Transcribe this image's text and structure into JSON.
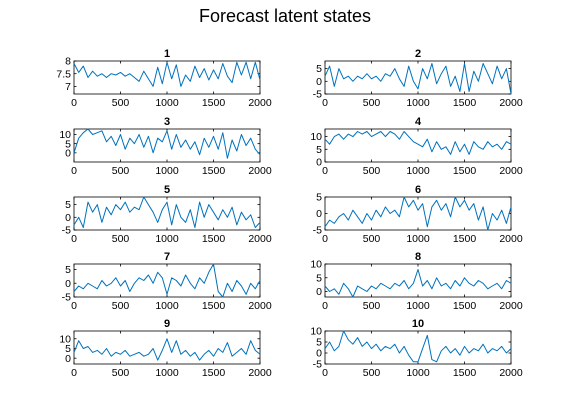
{
  "figure_title": "Forecast latent states",
  "colors": {
    "line": "#0072bd",
    "axes": "#000000",
    "background": "#ffffff"
  },
  "chart_data": [
    {
      "type": "line",
      "title": "1",
      "xlim": [
        0,
        2000
      ],
      "ylim": [
        6.7,
        8.0
      ],
      "xticks": [
        "0",
        "500",
        "1000",
        "1500",
        "2000"
      ],
      "yticks": [
        "7",
        "7.5",
        "8"
      ],
      "ytick_values": [
        7,
        7.5,
        8
      ],
      "x": [
        0,
        50,
        100,
        150,
        200,
        250,
        300,
        350,
        400,
        450,
        500,
        550,
        600,
        650,
        700,
        750,
        800,
        850,
        900,
        950,
        1000,
        1050,
        1100,
        1150,
        1200,
        1250,
        1300,
        1350,
        1400,
        1450,
        1500,
        1550,
        1600,
        1650,
        1700,
        1750,
        1800,
        1850,
        1900,
        1950,
        2000
      ],
      "y": [
        7.9,
        7.55,
        7.8,
        7.35,
        7.6,
        7.4,
        7.5,
        7.35,
        7.5,
        7.45,
        7.55,
        7.4,
        7.5,
        7.35,
        7.2,
        7.6,
        7.3,
        7.0,
        7.75,
        7.1,
        7.95,
        7.3,
        7.85,
        7.0,
        7.45,
        7.2,
        7.8,
        7.35,
        7.7,
        7.25,
        7.65,
        7.3,
        7.9,
        7.4,
        7.15,
        7.95,
        7.45,
        7.95,
        7.3,
        7.95,
        7.25
      ]
    },
    {
      "type": "line",
      "title": "2",
      "xlim": [
        0,
        2000
      ],
      "ylim": [
        -5,
        8
      ],
      "xticks": [
        "0",
        "500",
        "1000",
        "1500",
        "2000"
      ],
      "yticks": [
        "-5",
        "0",
        "5"
      ],
      "ytick_values": [
        -5,
        0,
        5
      ],
      "x": [
        0,
        50,
        100,
        150,
        200,
        250,
        300,
        350,
        400,
        450,
        500,
        550,
        600,
        650,
        700,
        750,
        800,
        850,
        900,
        950,
        1000,
        1050,
        1100,
        1150,
        1200,
        1250,
        1300,
        1350,
        1400,
        1450,
        1500,
        1550,
        1600,
        1650,
        1700,
        1750,
        1800,
        1850,
        1900,
        1950,
        2000
      ],
      "y": [
        2,
        6,
        -2,
        5,
        1,
        2,
        0,
        2,
        1,
        3,
        1,
        2,
        0,
        3,
        2,
        5,
        1,
        -2,
        6,
        0,
        -3,
        5,
        1,
        7,
        -1,
        3,
        6,
        -2,
        2,
        -4,
        7,
        -4,
        4,
        0,
        7,
        3,
        -1,
        6,
        1,
        5,
        -5
      ]
    },
    {
      "type": "line",
      "title": "3",
      "xlim": [
        0,
        2000
      ],
      "ylim": [
        -5,
        13
      ],
      "xticks": [
        "0",
        "500",
        "1000",
        "1500",
        "2000"
      ],
      "yticks": [
        "0",
        "5",
        "10"
      ],
      "ytick_values": [
        0,
        5,
        10
      ],
      "x": [
        0,
        50,
        100,
        150,
        200,
        250,
        300,
        350,
        400,
        450,
        500,
        550,
        600,
        650,
        700,
        750,
        800,
        850,
        900,
        950,
        1000,
        1050,
        1100,
        1150,
        1200,
        1250,
        1300,
        1350,
        1400,
        1450,
        1500,
        1550,
        1600,
        1650,
        1700,
        1750,
        1800,
        1850,
        1900,
        1950,
        2000
      ],
      "y": [
        0,
        8,
        11,
        13,
        10,
        11,
        12,
        6,
        9,
        4,
        10,
        2,
        8,
        5,
        10,
        3,
        9,
        0,
        8,
        6,
        12,
        2,
        10,
        3,
        7,
        2,
        6,
        -1,
        8,
        3,
        9,
        2,
        11,
        -3,
        7,
        1,
        10,
        4,
        8,
        2,
        -1
      ]
    },
    {
      "type": "line",
      "title": "4",
      "xlim": [
        0,
        2000
      ],
      "ylim": [
        0,
        13
      ],
      "xticks": [
        "0",
        "500",
        "1000",
        "1500",
        "2000"
      ],
      "yticks": [
        "0",
        "5",
        "10"
      ],
      "ytick_values": [
        0,
        5,
        10
      ],
      "x": [
        0,
        50,
        100,
        150,
        200,
        250,
        300,
        350,
        400,
        450,
        500,
        550,
        600,
        650,
        700,
        750,
        800,
        850,
        900,
        950,
        1000,
        1050,
        1100,
        1150,
        1200,
        1250,
        1300,
        1350,
        1400,
        1450,
        1500,
        1550,
        1600,
        1650,
        1700,
        1750,
        1800,
        1850,
        1900,
        1950,
        2000
      ],
      "y": [
        9,
        7,
        10,
        11,
        9,
        11,
        10,
        12,
        11,
        12,
        10,
        11,
        12,
        10,
        12,
        11,
        9,
        12,
        10,
        8,
        7,
        6,
        9,
        4,
        8,
        5,
        6,
        3,
        8,
        4,
        7,
        3,
        8,
        6,
        5,
        8,
        6,
        7,
        5,
        8,
        7
      ]
    },
    {
      "type": "line",
      "title": "5",
      "xlim": [
        0,
        2000
      ],
      "ylim": [
        -5,
        8
      ],
      "xticks": [
        "0",
        "500",
        "1000",
        "1500",
        "2000"
      ],
      "yticks": [
        "-5",
        "0",
        "5"
      ],
      "ytick_values": [
        -5,
        0,
        5
      ],
      "x": [
        0,
        50,
        100,
        150,
        200,
        250,
        300,
        350,
        400,
        450,
        500,
        550,
        600,
        650,
        700,
        750,
        800,
        850,
        900,
        950,
        1000,
        1050,
        1100,
        1150,
        1200,
        1250,
        1300,
        1350,
        1400,
        1450,
        1500,
        1550,
        1600,
        1650,
        1700,
        1750,
        1800,
        1850,
        1900,
        1950,
        2000
      ],
      "y": [
        -3,
        0,
        -4,
        6,
        2,
        5,
        -2,
        4,
        1,
        5,
        3,
        6,
        2,
        4,
        3,
        8,
        5,
        2,
        -2,
        3,
        6,
        -3,
        5,
        0,
        -2,
        3,
        -4,
        6,
        0,
        5,
        2,
        -1,
        3,
        0,
        4,
        -3,
        2,
        -1,
        1,
        -4,
        -2
      ]
    },
    {
      "type": "line",
      "title": "6",
      "xlim": [
        0,
        2000
      ],
      "ylim": [
        -5,
        5
      ],
      "xticks": [
        "0",
        "500",
        "1000",
        "1500",
        "2000"
      ],
      "yticks": [
        "-5",
        "0",
        "5"
      ],
      "ytick_values": [
        -5,
        0,
        5
      ],
      "x": [
        0,
        50,
        100,
        150,
        200,
        250,
        300,
        350,
        400,
        450,
        500,
        550,
        600,
        650,
        700,
        750,
        800,
        850,
        900,
        950,
        1000,
        1050,
        1100,
        1150,
        1200,
        1250,
        1300,
        1350,
        1400,
        1450,
        1500,
        1550,
        1600,
        1650,
        1700,
        1750,
        1800,
        1850,
        1900,
        1950,
        2000
      ],
      "y": [
        -4,
        -2,
        -3,
        -1,
        0,
        -2,
        1,
        -1,
        -3,
        0,
        -2,
        1,
        -1,
        2,
        0,
        1,
        -1,
        5,
        2,
        4,
        1,
        3,
        -4,
        2,
        4,
        1,
        3,
        -1,
        5,
        2,
        4,
        1,
        3,
        -2,
        2,
        -5,
        0,
        -2,
        1,
        -3,
        2
      ]
    },
    {
      "type": "line",
      "title": "7",
      "xlim": [
        0,
        2000
      ],
      "ylim": [
        -5,
        7
      ],
      "xticks": [
        "0",
        "500",
        "1000",
        "1500",
        "2000"
      ],
      "yticks": [
        "-5",
        "0",
        "5"
      ],
      "ytick_values": [
        -5,
        0,
        5
      ],
      "x": [
        0,
        50,
        100,
        150,
        200,
        250,
        300,
        350,
        400,
        450,
        500,
        550,
        600,
        650,
        700,
        750,
        800,
        850,
        900,
        950,
        1000,
        1050,
        1100,
        1150,
        1200,
        1250,
        1300,
        1350,
        1400,
        1450,
        1500,
        1550,
        1600,
        1650,
        1700,
        1750,
        1800,
        1850,
        1900,
        1950,
        2000
      ],
      "y": [
        -3,
        -1,
        -2,
        0,
        -1,
        -2,
        1,
        -1,
        0,
        2,
        -1,
        1,
        -3,
        0,
        2,
        1,
        3,
        0,
        4,
        2,
        -4,
        2,
        1,
        -1,
        3,
        0,
        -2,
        2,
        0,
        4,
        7,
        -3,
        -5,
        0,
        -3,
        1,
        -1,
        -4,
        0,
        -2,
        1
      ]
    },
    {
      "type": "line",
      "title": "8",
      "xlim": [
        0,
        2000
      ],
      "ylim": [
        -2,
        10
      ],
      "xticks": [
        "0",
        "500",
        "1000",
        "1500",
        "2000"
      ],
      "yticks": [
        "0",
        "5",
        "10"
      ],
      "ytick_values": [
        0,
        5,
        10
      ],
      "x": [
        0,
        50,
        100,
        150,
        200,
        250,
        300,
        350,
        400,
        450,
        500,
        550,
        600,
        650,
        700,
        750,
        800,
        850,
        900,
        950,
        1000,
        1050,
        1100,
        1150,
        1200,
        1250,
        1300,
        1350,
        1400,
        1450,
        1500,
        1550,
        1600,
        1650,
        1700,
        1750,
        1800,
        1850,
        1900,
        1950,
        2000
      ],
      "y": [
        2,
        0,
        1,
        -1,
        3,
        1,
        -2,
        2,
        1,
        0,
        2,
        1,
        3,
        2,
        1,
        3,
        2,
        4,
        1,
        3,
        8,
        2,
        4,
        1,
        5,
        2,
        3,
        1,
        4,
        2,
        5,
        3,
        2,
        4,
        3,
        1,
        2,
        3,
        1,
        4,
        3
      ]
    },
    {
      "type": "line",
      "title": "9",
      "xlim": [
        0,
        2000
      ],
      "ylim": [
        -3,
        14
      ],
      "xticks": [
        "0",
        "500",
        "1000",
        "1500",
        "2000"
      ],
      "yticks": [
        "0",
        "5",
        "10"
      ],
      "ytick_values": [
        0,
        5,
        10
      ],
      "x": [
        0,
        50,
        100,
        150,
        200,
        250,
        300,
        350,
        400,
        450,
        500,
        550,
        600,
        650,
        700,
        750,
        800,
        850,
        900,
        950,
        1000,
        1050,
        1100,
        1150,
        1200,
        1250,
        1300,
        1350,
        1400,
        1450,
        1500,
        1550,
        1600,
        1650,
        1700,
        1750,
        1800,
        1850,
        1900,
        1950,
        2000
      ],
      "y": [
        3,
        9,
        5,
        6,
        3,
        4,
        2,
        5,
        1,
        3,
        2,
        4,
        1,
        2,
        3,
        1,
        2,
        5,
        -1,
        4,
        10,
        3,
        9,
        2,
        4,
        1,
        3,
        -1,
        2,
        4,
        1,
        5,
        3,
        8,
        1,
        3,
        5,
        2,
        9,
        4,
        2
      ]
    },
    {
      "type": "line",
      "title": "10",
      "xlim": [
        0,
        2000
      ],
      "ylim": [
        -5,
        10
      ],
      "xticks": [
        "0",
        "500",
        "1000",
        "1500",
        "2000"
      ],
      "yticks": [
        "-5",
        "0",
        "5",
        "10"
      ],
      "ytick_values": [
        -5,
        0,
        5,
        10
      ],
      "x": [
        0,
        50,
        100,
        150,
        200,
        250,
        300,
        350,
        400,
        450,
        500,
        550,
        600,
        650,
        700,
        750,
        800,
        850,
        900,
        950,
        1000,
        1050,
        1100,
        1150,
        1200,
        1250,
        1300,
        1350,
        1400,
        1450,
        1500,
        1550,
        1600,
        1650,
        1700,
        1750,
        1800,
        1850,
        1900,
        1950,
        2000
      ],
      "y": [
        2,
        5,
        1,
        3,
        10,
        6,
        4,
        7,
        3,
        5,
        2,
        4,
        1,
        3,
        2,
        4,
        0,
        3,
        -1,
        -4,
        -4,
        2,
        8,
        -3,
        -4,
        1,
        3,
        0,
        2,
        -1,
        3,
        0,
        2,
        1,
        4,
        0,
        2,
        1,
        3,
        0,
        2
      ]
    }
  ]
}
